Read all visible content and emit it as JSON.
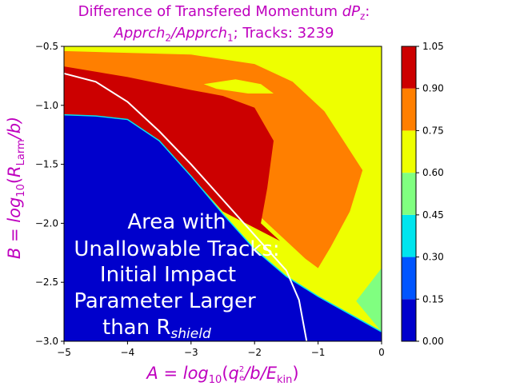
{
  "chart_data": {
    "type": "heatmap",
    "title": "Difference of Transfered Momentum dP_z:",
    "subtitle": "Apprch_2/Apprch_1; Tracks: 3239",
    "xlabel": "A = log10(q_e^2/b/E_kin)",
    "ylabel": "B = log10(R_Larm/b)",
    "xlim": [
      -5,
      0
    ],
    "ylim": [
      -3.0,
      -0.5
    ],
    "x_ticks": [
      "−5",
      "−4",
      "−3",
      "−2",
      "−1",
      "0"
    ],
    "y_ticks": [
      "−0.5",
      "−1.0",
      "−1.5",
      "−2.0",
      "−2.5",
      "−3.0"
    ],
    "colorbar": {
      "levels": [
        0.0,
        0.15,
        0.3,
        0.45,
        0.6,
        0.75,
        0.9,
        1.05
      ],
      "tick_labels": [
        "0.00",
        "0.15",
        "0.30",
        "0.45",
        "0.60",
        "0.75",
        "0.90",
        "1.05"
      ],
      "colors": [
        "#0000cc",
        "#0055ff",
        "#00e5ee",
        "#80ff80",
        "#eeff00",
        "#ff7f00",
        "#cc0000"
      ]
    },
    "regions": [
      {
        "level_range": [
          0.0,
          0.15
        ],
        "color": "#0000cc",
        "boundary": [
          [
            -5,
            -1.08
          ],
          [
            -4.5,
            -1.09
          ],
          [
            -4,
            -1.12
          ],
          [
            -3.5,
            -1.3
          ],
          [
            -3,
            -1.6
          ],
          [
            -2.5,
            -1.92
          ],
          [
            -2,
            -2.22
          ],
          [
            -1.5,
            -2.45
          ],
          [
            -1,
            -2.62
          ],
          [
            -0.5,
            -2.77
          ],
          [
            0,
            -2.92
          ]
        ]
      },
      {
        "level_range": [
          0.9,
          1.05
        ],
        "color": "#cc0000",
        "boundary": [
          [
            -5,
            -0.67
          ],
          [
            -4,
            -0.76
          ],
          [
            -3,
            -0.87
          ],
          [
            -2.5,
            -0.92
          ],
          [
            -2,
            -1.02
          ],
          [
            -1.7,
            -1.3
          ],
          [
            -1.8,
            -1.7
          ],
          [
            -1.9,
            -2.0
          ],
          [
            -1.6,
            -2.15
          ]
        ]
      },
      {
        "level_range": [
          0.75,
          0.9
        ],
        "color": "#ff7f00",
        "boundary": [
          [
            -5,
            -0.54
          ],
          [
            -3,
            -0.57
          ],
          [
            -2,
            -0.65
          ],
          [
            -1.4,
            -0.8
          ],
          [
            -0.9,
            -1.05
          ],
          [
            -0.6,
            -1.3
          ],
          [
            -0.3,
            -1.55
          ],
          [
            -0.5,
            -1.9
          ],
          [
            -0.8,
            -2.2
          ],
          [
            -1,
            -2.38
          ]
        ]
      },
      {
        "level_range": [
          0.6,
          0.75
        ],
        "color": "#eeff00",
        "boundary": [
          [
            -1,
            -2.4
          ],
          [
            -0.4,
            -2.65
          ],
          [
            0,
            -2.38
          ]
        ]
      },
      {
        "level_range": [
          0.45,
          0.6
        ],
        "color": "#80ff80",
        "boundary": [
          [
            -0.4,
            -2.66
          ],
          [
            0,
            -2.38
          ],
          [
            0,
            -2.92
          ]
        ]
      }
    ],
    "annotation": "Area with Unallowable Tracks: Initial Impact Parameter Larger than R_shield",
    "white_line": {
      "description": "boundary curve",
      "points": [
        [
          -5,
          -0.73
        ],
        [
          -4.5,
          -0.8
        ],
        [
          -4,
          -0.97
        ],
        [
          -3.5,
          -1.22
        ],
        [
          -3,
          -1.5
        ],
        [
          -2.5,
          -1.8
        ],
        [
          -2,
          -2.1
        ],
        [
          -1.5,
          -2.4
        ],
        [
          -1.3,
          -2.65
        ],
        [
          -1.18,
          -3.0
        ]
      ]
    }
  },
  "labels": {
    "title_line1_text": "Difference of Transfered Momentum ",
    "title_line1_var": "dP",
    "title_line1_sub": "z",
    "title_line1_end": ":",
    "title_line2_a": "Apprch",
    "title_line2_a_sub": "2",
    "title_line2_slash": "/",
    "title_line2_b": "Apprch",
    "title_line2_b_sub": "1",
    "title_line2_tail": "; Tracks: 3239",
    "annotation_lines": [
      "Area with",
      "Unallowable Tracks:",
      "Initial Impact",
      "Parameter Larger",
      "than R"
    ],
    "annotation_sub": "shield",
    "x_label_a": "A",
    "x_label_eq": " = ",
    "x_label_log": "log",
    "x_label_log_sub": "10",
    "x_label_paren_open": "(",
    "x_label_q": "q",
    "x_label_q_sub": "e",
    "x_label_q_sup": "2",
    "x_label_rest": "/b/E",
    "x_label_e_sub": "kin",
    "x_label_paren_close": ")",
    "y_label_b": "B",
    "y_label_eq": " = ",
    "y_label_log": "log",
    "y_label_log_sub": "10",
    "y_label_paren_open": "(",
    "y_label_r": "R",
    "y_label_r_sub": "Larm",
    "y_label_rest": "/b)"
  }
}
